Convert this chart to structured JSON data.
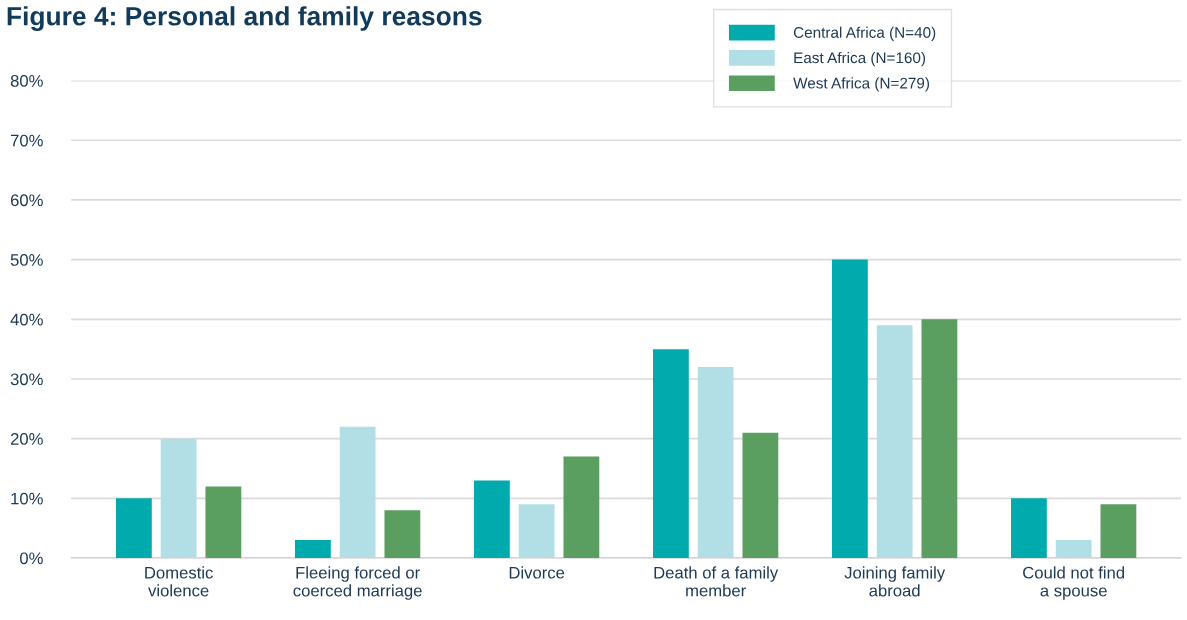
{
  "chart_data": {
    "type": "bar",
    "title": "Figure 4: Personal and family reasons",
    "categories": [
      "Domestic\nviolence",
      "Fleeing forced or\ncoerced marriage",
      "Divorce",
      "Death of a family\nmember",
      "Joining family\nabroad",
      "Could not find\na spouse"
    ],
    "series": [
      {
        "name": "Central Africa (N=40)",
        "color": "#00aaad",
        "values": [
          10,
          3,
          13,
          35,
          50,
          10
        ]
      },
      {
        "name": "East Africa (N=160)",
        "color": "#b1dfe5",
        "values": [
          20,
          22,
          9,
          32,
          39,
          3
        ]
      },
      {
        "name": "West Africa (N=279)",
        "color": "#5a9e60",
        "values": [
          12,
          8,
          17,
          21,
          40,
          9
        ]
      }
    ],
    "ylim": [
      0,
      80
    ],
    "yticks": [
      {
        "value": 0,
        "label": "0%"
      },
      {
        "value": 10,
        "label": "10%"
      },
      {
        "value": 20,
        "label": "20%"
      },
      {
        "value": 30,
        "label": "30%"
      },
      {
        "value": 40,
        "label": "40%"
      },
      {
        "value": 50,
        "label": "50%"
      },
      {
        "value": 60,
        "label": "60%"
      },
      {
        "value": 70,
        "label": "70%"
      },
      {
        "value": 80,
        "label": "80%"
      }
    ],
    "grid": "y",
    "legend": "top right"
  }
}
